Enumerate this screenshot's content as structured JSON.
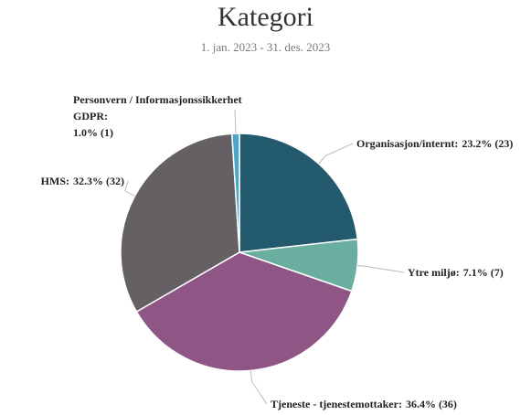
{
  "chart_data": {
    "type": "pie",
    "title": "Kategori",
    "subtitle": "1. jan. 2023 - 31. des. 2023",
    "categories": [
      "Organisasjon/internt:",
      "Ytre miljø:",
      "Tjeneste - tjenestemottaker:",
      "HMS:",
      "Personvern / Informasjonssikkerhet GDPR:"
    ],
    "values": [
      23,
      7,
      36,
      32,
      1
    ],
    "value_labels": [
      "23.2% (23)",
      "7.1% (7)",
      "36.4% (36)",
      "32.3% (32)",
      "1.0% (1)"
    ],
    "colors": [
      "#245a6e",
      "#6aaea0",
      "#8e5585",
      "#646064",
      "#4ba6c8"
    ]
  }
}
